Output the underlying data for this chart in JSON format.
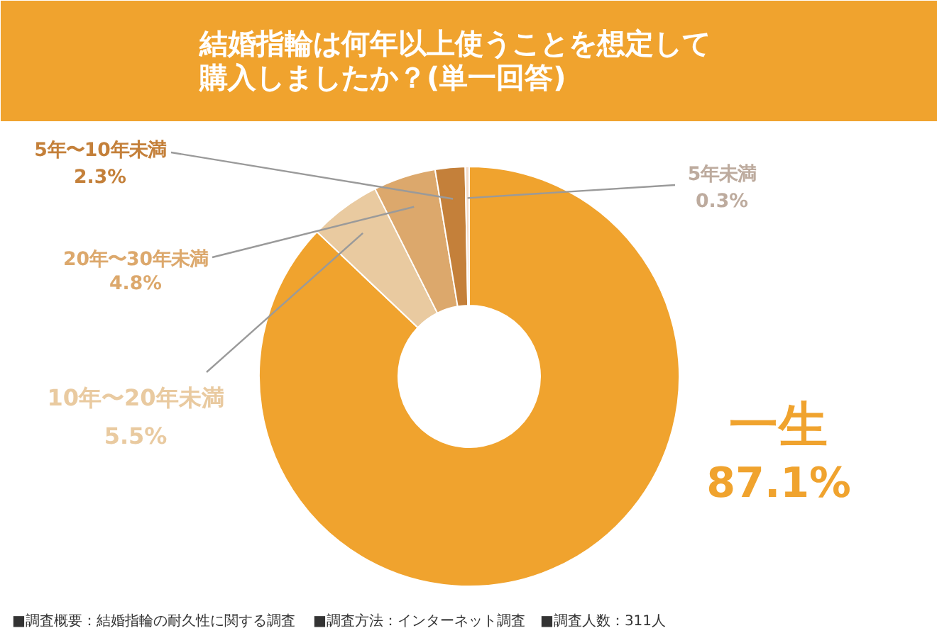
{
  "chart_data": {
    "type": "donut",
    "title": "結婚指輪は何年以上使うことを想定して購入しましたか？(単一回答)",
    "categories": [
      "一生",
      "10年〜20年未満",
      "20年〜30年未満",
      "5年〜10年未満",
      "5年未満"
    ],
    "values": [
      87.1,
      5.5,
      4.8,
      2.3,
      0.3
    ],
    "value_labels": [
      "87.1%",
      "5.5%",
      "4.8%",
      "2.3%",
      "0.3%"
    ],
    "colors": [
      "#f0a32e",
      "#e9caa0",
      "#dca86c",
      "#c4803a",
      "#f3dccb"
    ],
    "data_labels": true,
    "annotations": [
      "■調査概要：結婚指輪の耐久性に関する調査",
      "■調査方法：インターネット調査",
      "■調査人数：311人"
    ]
  }
}
